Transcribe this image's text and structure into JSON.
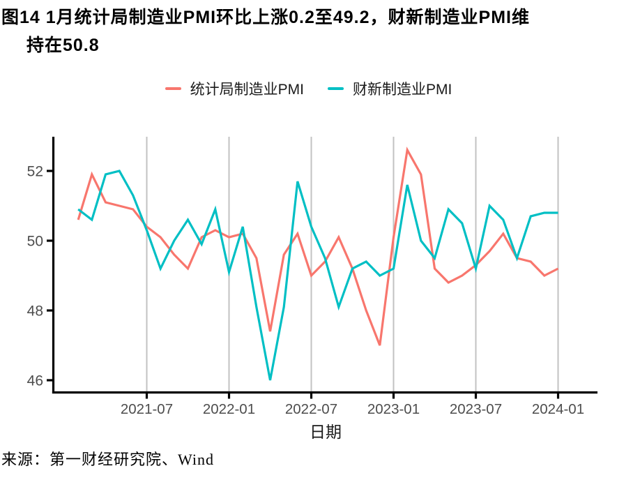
{
  "figure": {
    "title_line1": "图14 1月统计局制造业PMI环比上涨0.2至49.2，财新制造业PMI维",
    "title_line2": "持在50.8",
    "source": "来源：第一财经研究院、Wind"
  },
  "colors": {
    "nbs_line": "#F8766D",
    "caixin_line": "#00BFC4",
    "gridline": "#C2C2C2",
    "axis": "#000000",
    "tick_label": "#4D4D4D"
  },
  "chart_data": {
    "type": "line",
    "title": "",
    "xlabel": "日期",
    "ylabel": "",
    "x": [
      "2021-02",
      "2021-03",
      "2021-04",
      "2021-05",
      "2021-06",
      "2021-07",
      "2021-08",
      "2021-09",
      "2021-10",
      "2021-11",
      "2021-12",
      "2022-01",
      "2022-02",
      "2022-03",
      "2022-04",
      "2022-05",
      "2022-06",
      "2022-07",
      "2022-08",
      "2022-09",
      "2022-10",
      "2022-11",
      "2022-12",
      "2023-01",
      "2023-02",
      "2023-03",
      "2023-04",
      "2023-05",
      "2023-06",
      "2023-07",
      "2023-08",
      "2023-09",
      "2023-10",
      "2023-11",
      "2023-12",
      "2024-01"
    ],
    "series": [
      {
        "name": "统计局制造业PMI",
        "color": "#F8766D",
        "values": [
          50.6,
          51.9,
          51.1,
          51.0,
          50.9,
          50.4,
          50.1,
          49.6,
          49.2,
          50.1,
          50.3,
          50.1,
          50.2,
          49.5,
          47.4,
          49.6,
          50.2,
          49.0,
          49.4,
          50.1,
          49.2,
          48.0,
          47.0,
          50.1,
          52.6,
          51.9,
          49.2,
          48.8,
          49.0,
          49.3,
          49.7,
          50.2,
          49.5,
          49.4,
          49.0,
          49.2
        ]
      },
      {
        "name": "财新制造业PMI",
        "color": "#00BFC4",
        "values": [
          50.9,
          50.6,
          51.9,
          52.0,
          51.3,
          50.3,
          49.2,
          50.0,
          50.6,
          49.9,
          50.9,
          49.1,
          50.4,
          48.1,
          46.0,
          48.1,
          51.7,
          50.4,
          49.5,
          48.1,
          49.2,
          49.4,
          49.0,
          49.2,
          51.6,
          50.0,
          49.5,
          50.9,
          50.5,
          49.2,
          51.0,
          50.6,
          49.5,
          50.7,
          50.8,
          50.8
        ]
      }
    ],
    "x_ticks": [
      "2021-07",
      "2022-01",
      "2022-07",
      "2023-01",
      "2023-07",
      "2024-01"
    ],
    "y_ticks": [
      46,
      48,
      50,
      52
    ],
    "ylim": [
      45.6,
      53.1
    ],
    "grid": "vertical-major-only",
    "legend_position": "top-center"
  }
}
